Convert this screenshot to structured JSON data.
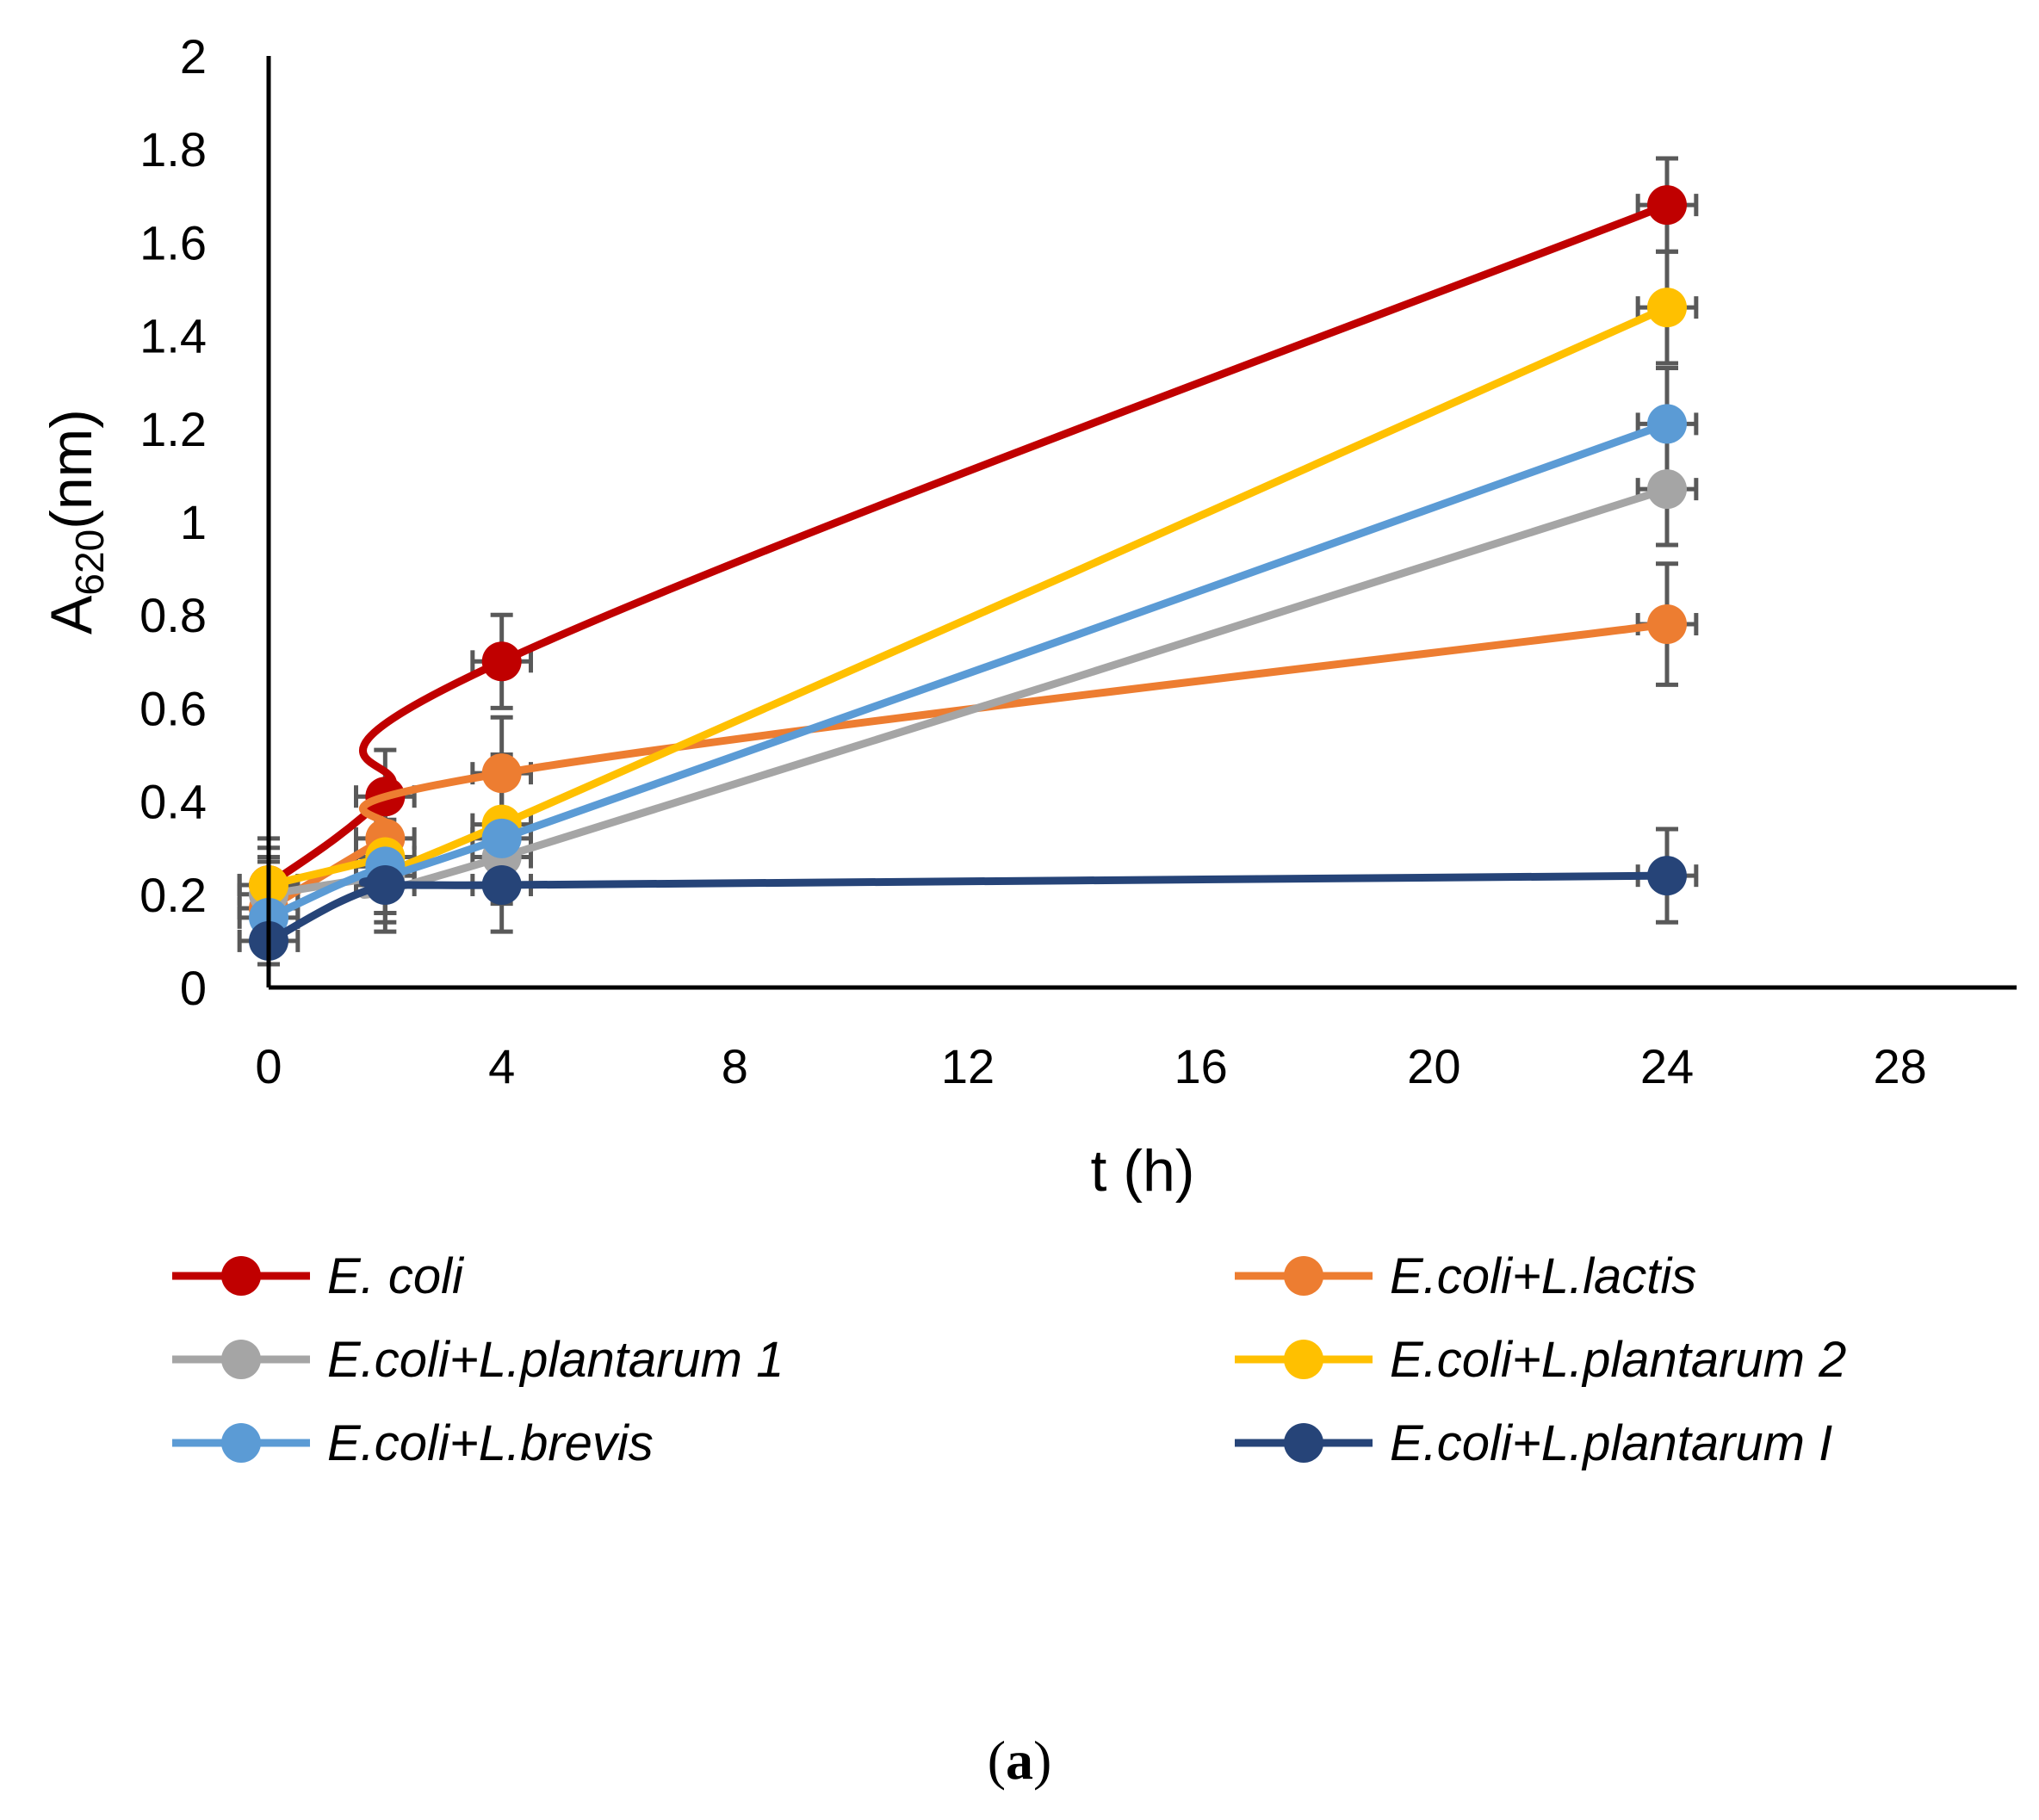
{
  "chart_data": {
    "type": "line",
    "title": "",
    "xlabel": "t (h)",
    "ylabel": {
      "main": "A",
      "subscript": "620",
      "suffix": "(nm)"
    },
    "xlim": [
      0,
      30
    ],
    "ylim": [
      0,
      2
    ],
    "x_ticks": [
      0,
      4,
      8,
      12,
      16,
      20,
      24,
      28
    ],
    "y_ticks": [
      0,
      0.2,
      0.4,
      0.6,
      0.8,
      1,
      1.2,
      1.4,
      1.6,
      1.8,
      2
    ],
    "y_tick_labels": [
      "0",
      "0.2",
      "0.4",
      "0.6",
      "0.8",
      "1",
      "1.2",
      "1.4",
      "1.6",
      "1.8",
      "2"
    ],
    "x_error": 0.5,
    "legend_position": "bottom",
    "series": [
      {
        "name": "E. coli",
        "color": "#C00000",
        "x": [
          0,
          2,
          4,
          24
        ],
        "y": [
          0.22,
          0.41,
          0.7,
          1.68
        ],
        "yerr": [
          0.08,
          0.1,
          0.1,
          0.1
        ]
      },
      {
        "name": "E.coli+L.lactis",
        "color": "#ED7D31",
        "x": [
          0,
          2,
          4,
          24
        ],
        "y": [
          0.17,
          0.32,
          0.46,
          0.78
        ],
        "yerr": [
          0.1,
          0.1,
          0.12,
          0.13
        ]
      },
      {
        "name": "E.coli+L.plantarum 1",
        "color": "#A5A5A5",
        "x": [
          0,
          2,
          4,
          24
        ],
        "y": [
          0.2,
          0.24,
          0.28,
          1.07
        ],
        "yerr": [
          0.08,
          0.1,
          0.1,
          0.12
        ]
      },
      {
        "name": "E.coli+L.plantarum 2",
        "color": "#FFC000",
        "x": [
          0,
          2,
          4,
          24
        ],
        "y": [
          0.22,
          0.28,
          0.35,
          1.46
        ],
        "yerr": [
          0.1,
          0.12,
          0.15,
          0.12
        ]
      },
      {
        "name": "E.coli+L.brevis",
        "color": "#5B9BD5",
        "x": [
          0,
          2,
          4,
          24
        ],
        "y": [
          0.15,
          0.26,
          0.32,
          1.21
        ],
        "yerr": [
          0.08,
          0.1,
          0.12,
          0.12
        ]
      },
      {
        "name": "E.coli+L.plantarum I",
        "color": "#264478",
        "x": [
          0,
          2,
          4,
          24
        ],
        "y": [
          0.1,
          0.22,
          0.22,
          0.24
        ],
        "yerr": [
          0.05,
          0.1,
          0.1,
          0.1
        ]
      }
    ]
  },
  "caption": {
    "open": "(",
    "letter": "a",
    "close": ")"
  }
}
